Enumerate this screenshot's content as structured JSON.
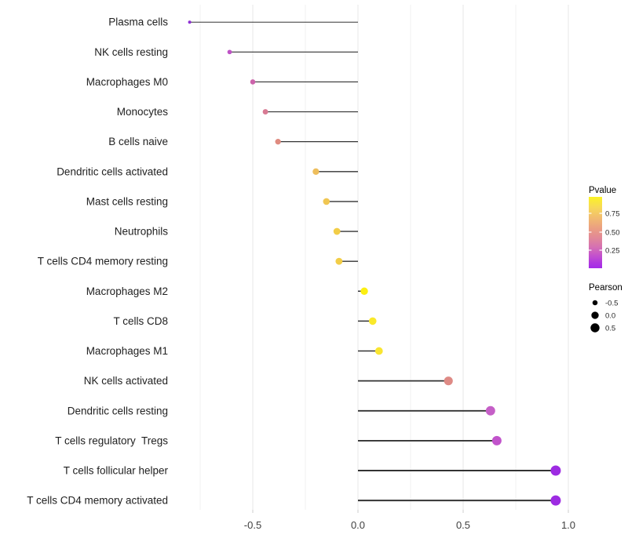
{
  "chart_data": {
    "type": "lollipop",
    "title": "",
    "xlabel": "",
    "ylabel": "",
    "x_ticks": [
      -0.5,
      0.0,
      0.5,
      1.0
    ],
    "x_tick_labels": [
      "-0.5",
      "0.0",
      "0.5",
      "1.0"
    ],
    "x_minor_ticks": [
      -0.75,
      -0.25,
      0.25,
      0.75
    ],
    "xlim": [
      -0.89,
      1.03
    ],
    "grid": true,
    "legend_position": "right",
    "points": [
      {
        "label": "Plasma cells",
        "pearson": -0.8,
        "color": "#8E30D3"
      },
      {
        "label": "NK cells resting",
        "pearson": -0.61,
        "color": "#BE53C6"
      },
      {
        "label": "Macrophages M0",
        "pearson": -0.5,
        "color": "#CC63AB"
      },
      {
        "label": "Monocytes",
        "pearson": -0.44,
        "color": "#D87A93"
      },
      {
        "label": "B cells naive",
        "pearson": -0.38,
        "color": "#DF8B80"
      },
      {
        "label": "Dendritic cells activated",
        "pearson": -0.2,
        "color": "#EEBE5C"
      },
      {
        "label": "Mast cells resting",
        "pearson": -0.15,
        "color": "#F0C652"
      },
      {
        "label": "Neutrophils",
        "pearson": -0.1,
        "color": "#F2CD47"
      },
      {
        "label": "T cells CD4 memory resting",
        "pearson": -0.09,
        "color": "#F2CD47"
      },
      {
        "label": "Macrophages M2",
        "pearson": 0.03,
        "color": "#FCEF11"
      },
      {
        "label": "T cells CD8",
        "pearson": 0.07,
        "color": "#FAE92A"
      },
      {
        "label": "Macrophages M1",
        "pearson": 0.1,
        "color": "#F9E531"
      },
      {
        "label": "NK cells activated",
        "pearson": 0.43,
        "color": "#DE8A85"
      },
      {
        "label": "Dendritic cells resting",
        "pearson": 0.63,
        "color": "#C55FC7"
      },
      {
        "label": "T cells regulatory  Tregs",
        "pearson": 0.66,
        "color": "#C153CB"
      },
      {
        "label": "T cells follicular helper",
        "pearson": 0.94,
        "color": "#9D2BE2"
      },
      {
        "label": "T cells CD4 memory activated",
        "pearson": 0.94,
        "color": "#9D2BE2"
      }
    ],
    "legend": {
      "color": {
        "title": "Pvalue",
        "tick_labels": [
          "0.75",
          "0.50",
          "0.25"
        ],
        "gradient_stops": [
          {
            "color": "#FBF324",
            "pos": 0
          },
          {
            "color": "#F7D958",
            "pos": 15
          },
          {
            "color": "#F1BA70",
            "pos": 30
          },
          {
            "color": "#EA9D83",
            "pos": 45
          },
          {
            "color": "#E18798",
            "pos": 58
          },
          {
            "color": "#D671B2",
            "pos": 70
          },
          {
            "color": "#C452CC",
            "pos": 82
          },
          {
            "color": "#B038DF",
            "pos": 92
          },
          {
            "color": "#A32AE8",
            "pos": 100
          }
        ]
      },
      "size": {
        "title": "Pearson",
        "entries": [
          {
            "label": "-0.5",
            "value": -0.5
          },
          {
            "label": "0.0",
            "value": 0.0
          },
          {
            "label": "0.5",
            "value": 0.5
          }
        ]
      }
    }
  }
}
